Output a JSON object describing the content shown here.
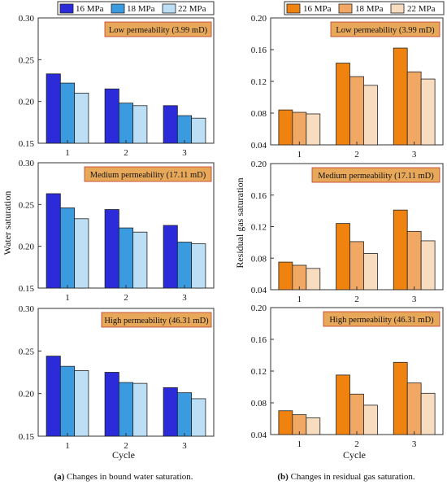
{
  "legend": {
    "left": [
      {
        "label": "16 MPa",
        "color": "#2b2bd9"
      },
      {
        "label": "18 MPa",
        "color": "#3a9be0"
      },
      {
        "label": "22 MPa",
        "color": "#bcdff5"
      }
    ],
    "right": [
      {
        "label": "16 MPa",
        "color": "#f0830f"
      },
      {
        "label": "18 MPa",
        "color": "#f2a865"
      },
      {
        "label": "22 MPa",
        "color": "#f8dcc0"
      }
    ]
  },
  "captions": {
    "left": {
      "bold": "(a)",
      "text": " Changes in bound water saturation."
    },
    "right": {
      "bold": "(b)",
      "text": " Changes in residual gas saturation."
    }
  },
  "xlabel": "Cycle",
  "ylabel_left": "Water saturation",
  "ylabel_right": "Residual gas saturation",
  "annotation_fill": "#e8a85a",
  "chart_data": [
    {
      "type": "bar",
      "id": "left-low",
      "annotation": "Low permeability (3.99 mD)",
      "categories": [
        "1",
        "2",
        "3"
      ],
      "ylim": [
        0.15,
        0.3
      ],
      "yticks": [
        "0.15",
        "0.20",
        "0.25",
        "0.30"
      ],
      "series": [
        {
          "name": "16 MPa",
          "values": [
            0.233,
            0.215,
            0.195
          ]
        },
        {
          "name": "18 MPa",
          "values": [
            0.222,
            0.198,
            0.183
          ]
        },
        {
          "name": "22 MPa",
          "values": [
            0.21,
            0.195,
            0.18
          ]
        }
      ]
    },
    {
      "type": "bar",
      "id": "left-medium",
      "annotation": "Medium permeability (17.11 mD)",
      "categories": [
        "1",
        "2",
        "3"
      ],
      "ylim": [
        0.15,
        0.3
      ],
      "yticks": [
        "0.15",
        "0.20",
        "0.25",
        "0.30"
      ],
      "series": [
        {
          "name": "16 MPa",
          "values": [
            0.263,
            0.244,
            0.225
          ]
        },
        {
          "name": "18 MPa",
          "values": [
            0.246,
            0.222,
            0.205
          ]
        },
        {
          "name": "22 MPa",
          "values": [
            0.233,
            0.217,
            0.203
          ]
        }
      ]
    },
    {
      "type": "bar",
      "id": "left-high",
      "annotation": "High permeability (46.31 mD)",
      "categories": [
        "1",
        "2",
        "3"
      ],
      "ylim": [
        0.15,
        0.3
      ],
      "yticks": [
        "0.15",
        "0.20",
        "0.25",
        "0.30"
      ],
      "series": [
        {
          "name": "16 MPa",
          "values": [
            0.244,
            0.225,
            0.207
          ]
        },
        {
          "name": "18 MPa",
          "values": [
            0.232,
            0.213,
            0.201
          ]
        },
        {
          "name": "22 MPa",
          "values": [
            0.227,
            0.212,
            0.194
          ]
        }
      ]
    },
    {
      "type": "bar",
      "id": "right-low",
      "annotation": "Low permeability (3.99 mD)",
      "categories": [
        "1",
        "2",
        "3"
      ],
      "ylim": [
        0.04,
        0.2
      ],
      "yticks": [
        "0.04",
        "0.08",
        "0.12",
        "0.16",
        "0.20"
      ],
      "series": [
        {
          "name": "16 MPa",
          "values": [
            0.084,
            0.143,
            0.162
          ]
        },
        {
          "name": "18 MPa",
          "values": [
            0.081,
            0.126,
            0.132
          ]
        },
        {
          "name": "22 MPa",
          "values": [
            0.079,
            0.115,
            0.123
          ]
        }
      ]
    },
    {
      "type": "bar",
      "id": "right-medium",
      "annotation": "Medium permeability (17.11 mD)",
      "categories": [
        "1",
        "2",
        "3"
      ],
      "ylim": [
        0.04,
        0.2
      ],
      "yticks": [
        "0.04",
        "0.08",
        "0.12",
        "0.16",
        "0.20"
      ],
      "series": [
        {
          "name": "16 MPa",
          "values": [
            0.075,
            0.124,
            0.141
          ]
        },
        {
          "name": "18 MPa",
          "values": [
            0.071,
            0.101,
            0.114
          ]
        },
        {
          "name": "22 MPa",
          "values": [
            0.067,
            0.086,
            0.102
          ]
        }
      ]
    },
    {
      "type": "bar",
      "id": "right-high",
      "annotation": "High permeability (46.31 mD)",
      "categories": [
        "1",
        "2",
        "3"
      ],
      "ylim": [
        0.04,
        0.2
      ],
      "yticks": [
        "0.04",
        "0.08",
        "0.12",
        "0.16",
        "0.20"
      ],
      "series": [
        {
          "name": "16 MPa",
          "values": [
            0.07,
            0.115,
            0.131
          ]
        },
        {
          "name": "18 MPa",
          "values": [
            0.065,
            0.091,
            0.105
          ]
        },
        {
          "name": "22 MPa",
          "values": [
            0.061,
            0.077,
            0.092
          ]
        }
      ]
    }
  ]
}
